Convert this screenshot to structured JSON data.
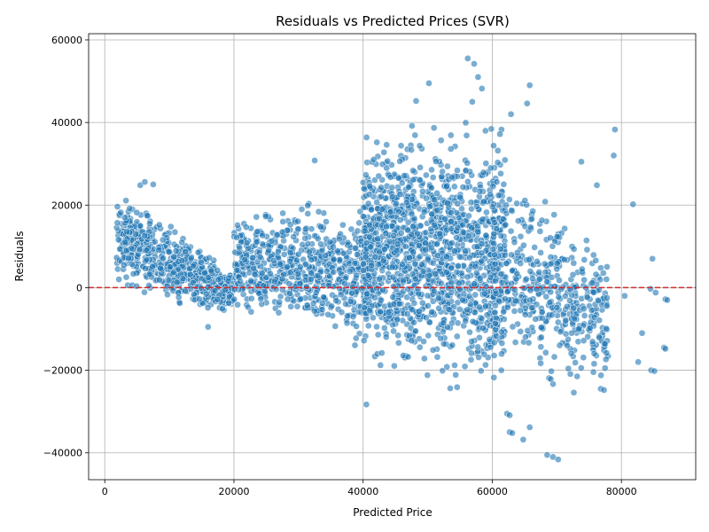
{
  "chart_data": {
    "type": "scatter",
    "title": "Residuals vs Predicted Prices (SVR)",
    "xlabel": "Predicted Price",
    "ylabel": "Residuals",
    "xlim": [
      -2500,
      91500
    ],
    "ylim": [
      -46500,
      61500
    ],
    "x_ticks": [
      0,
      20000,
      40000,
      60000,
      80000
    ],
    "x_tick_labels": [
      "0",
      "20000",
      "40000",
      "60000",
      "80000"
    ],
    "y_ticks": [
      -40000,
      -20000,
      0,
      20000,
      40000,
      60000
    ],
    "y_tick_labels": [
      "−40000",
      "−20000",
      "0",
      "20000",
      "40000",
      "60000"
    ],
    "grid": true,
    "reference_line": {
      "y": 0,
      "color": "#d62728",
      "style": "dashed"
    },
    "point_color": "#1f77b4",
    "point_edge_color": "#ffffff",
    "point_opacity": 0.6,
    "clusters": [
      {
        "x_range": [
          1800,
          20000
        ],
        "y_at_start": [
          -1000,
          25000
        ],
        "y_at_end": [
          -7000,
          4000
        ],
        "count": 650
      },
      {
        "x_range": [
          20000,
          42000
        ],
        "y_at_start": [
          -8000,
          20000
        ],
        "y_at_end": [
          -16000,
          22000
        ],
        "count": 700
      },
      {
        "x_range": [
          40000,
          62000
        ],
        "y_at_start": [
          -22000,
          40000
        ],
        "y_at_end": [
          -28000,
          42000
        ],
        "count": 1400
      },
      {
        "x_range": [
          60000,
          78000
        ],
        "y_at_start": [
          -24000,
          36000
        ],
        "y_at_end": [
          -25000,
          10000
        ],
        "count": 450
      }
    ],
    "outliers": [
      {
        "x": 56200,
        "y": 55500
      },
      {
        "x": 57200,
        "y": 54200
      },
      {
        "x": 57800,
        "y": 51000
      },
      {
        "x": 50200,
        "y": 49500
      },
      {
        "x": 65800,
        "y": 49000
      },
      {
        "x": 58400,
        "y": 48200
      },
      {
        "x": 48200,
        "y": 45200
      },
      {
        "x": 56900,
        "y": 45000
      },
      {
        "x": 65400,
        "y": 44600
      },
      {
        "x": 62900,
        "y": 42000
      },
      {
        "x": 79000,
        "y": 38300
      },
      {
        "x": 78800,
        "y": 32000
      },
      {
        "x": 73800,
        "y": 30500
      },
      {
        "x": 32500,
        "y": 30800
      },
      {
        "x": 76200,
        "y": 24800
      },
      {
        "x": 81800,
        "y": 20200
      },
      {
        "x": 84800,
        "y": 7000
      },
      {
        "x": 80500,
        "y": -2000
      },
      {
        "x": 84500,
        "y": -300
      },
      {
        "x": 85300,
        "y": -1200
      },
      {
        "x": 86800,
        "y": -2800
      },
      {
        "x": 87100,
        "y": -3000
      },
      {
        "x": 83200,
        "y": -11000
      },
      {
        "x": 86600,
        "y": -14500
      },
      {
        "x": 86800,
        "y": -14800
      },
      {
        "x": 82600,
        "y": -18000
      },
      {
        "x": 84600,
        "y": -20000
      },
      {
        "x": 85100,
        "y": -20200
      },
      {
        "x": 76800,
        "y": -24500
      },
      {
        "x": 77300,
        "y": -24800
      },
      {
        "x": 40500,
        "y": -28300
      },
      {
        "x": 62300,
        "y": -30500
      },
      {
        "x": 62700,
        "y": -30900
      },
      {
        "x": 65800,
        "y": -33800
      },
      {
        "x": 62700,
        "y": -35000
      },
      {
        "x": 63100,
        "y": -35200
      },
      {
        "x": 64800,
        "y": -36800
      },
      {
        "x": 68500,
        "y": -40500
      },
      {
        "x": 69400,
        "y": -41000
      },
      {
        "x": 70200,
        "y": -41600
      },
      {
        "x": 16000,
        "y": -9500
      },
      {
        "x": 5500,
        "y": 24800
      },
      {
        "x": 6200,
        "y": 25600
      },
      {
        "x": 7500,
        "y": 25000
      }
    ]
  }
}
